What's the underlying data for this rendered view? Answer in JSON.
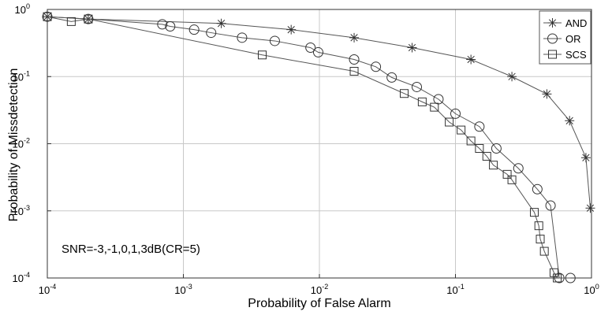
{
  "chart_data": {
    "type": "line",
    "title": "",
    "xlabel": "Probability of False Alarm",
    "ylabel": "Probability of Missdetection",
    "xscale": "log",
    "yscale": "log",
    "xlim": [
      0.0001,
      1
    ],
    "ylim": [
      0.0001,
      1
    ],
    "grid": true,
    "legend_position": "top-right",
    "annotation": "SNR=-3,-1,0,1,3dB(CR=5)",
    "x_ticks": [
      {
        "value": 0.0001,
        "base": "10",
        "exp": "-4"
      },
      {
        "value": 0.001,
        "base": "10",
        "exp": "-3"
      },
      {
        "value": 0.01,
        "base": "10",
        "exp": "-2"
      },
      {
        "value": 0.1,
        "base": "10",
        "exp": "-1"
      },
      {
        "value": 1,
        "base": "10",
        "exp": "0"
      }
    ],
    "y_ticks": [
      {
        "value": 1,
        "base": "10",
        "exp": "0"
      },
      {
        "value": 0.1,
        "base": "10",
        "exp": "-1"
      },
      {
        "value": 0.01,
        "base": "10",
        "exp": "-2"
      },
      {
        "value": 0.001,
        "base": "10",
        "exp": "-3"
      },
      {
        "value": 0.0001,
        "base": "10",
        "exp": "-4"
      }
    ],
    "series": [
      {
        "name": "AND",
        "marker": "star",
        "x": [
          0.0001,
          0.0002,
          0.0019,
          0.0062,
          0.018,
          0.048,
          0.13,
          0.26,
          0.47,
          0.69,
          0.91,
          0.98
        ],
        "y": [
          0.78,
          0.72,
          0.62,
          0.5,
          0.38,
          0.27,
          0.18,
          0.1,
          0.055,
          0.022,
          0.0062,
          0.0011
        ]
      },
      {
        "name": "OR",
        "marker": "circle",
        "x": [
          0.0001,
          0.0002,
          0.0007,
          0.0008,
          0.0012,
          0.0016,
          0.0027,
          0.0047,
          0.0086,
          0.0098,
          0.018,
          0.026,
          0.034,
          0.052,
          0.075,
          0.1,
          0.15,
          0.2,
          0.29,
          0.4,
          0.5,
          0.58,
          0.7
        ],
        "y": [
          0.78,
          0.72,
          0.6,
          0.56,
          0.5,
          0.45,
          0.38,
          0.34,
          0.27,
          0.23,
          0.18,
          0.14,
          0.097,
          0.07,
          0.046,
          0.028,
          0.018,
          0.0085,
          0.0043,
          0.0021,
          0.0012,
          0.0001,
          0.0001
        ]
      },
      {
        "name": "SCS",
        "marker": "square",
        "x": [
          0.0001,
          0.00015,
          0.0002,
          0.0038,
          0.018,
          0.042,
          0.057,
          0.07,
          0.09,
          0.11,
          0.13,
          0.15,
          0.17,
          0.19,
          0.24,
          0.26,
          0.38,
          0.41,
          0.42,
          0.45,
          0.53,
          0.56
        ],
        "y": [
          0.78,
          0.66,
          0.72,
          0.21,
          0.12,
          0.056,
          0.042,
          0.035,
          0.021,
          0.016,
          0.011,
          0.0085,
          0.0065,
          0.0048,
          0.0035,
          0.0029,
          0.00095,
          0.0006,
          0.00038,
          0.00025,
          0.00012,
          0.0001
        ]
      }
    ]
  }
}
